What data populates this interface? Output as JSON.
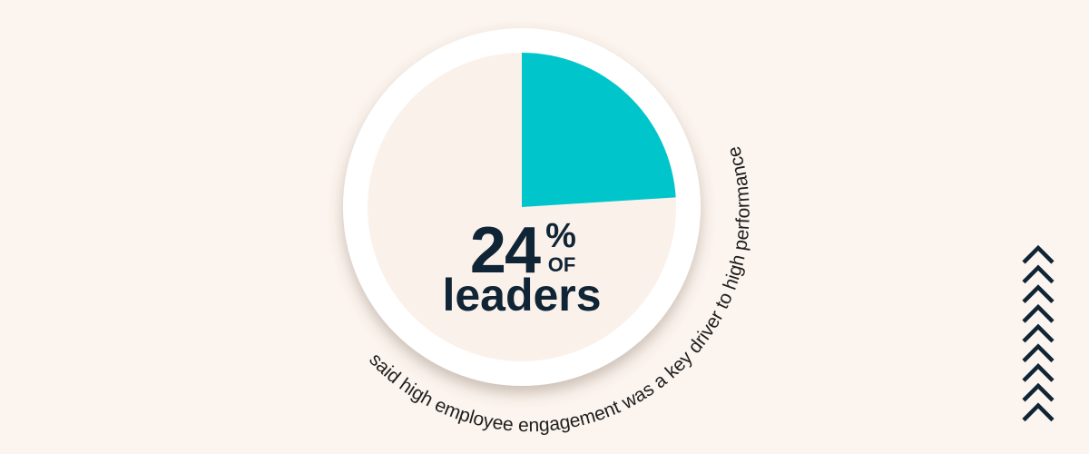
{
  "chart_data": {
    "type": "pie",
    "values": [
      24,
      76
    ],
    "unit": "%",
    "colors": {
      "highlight": "#00c6cc",
      "rest": "#fbf1eb",
      "ring": "#ffffff",
      "text": "#0f2435",
      "background": "#fcf4ee"
    }
  },
  "headline": {
    "value": "24",
    "percent": "%",
    "of": "OF",
    "subject": "leaders"
  },
  "caption": "said high employee engagement was a key driver to high performance",
  "decoration": {
    "icon": "chevron-up-stack",
    "count": 9
  }
}
